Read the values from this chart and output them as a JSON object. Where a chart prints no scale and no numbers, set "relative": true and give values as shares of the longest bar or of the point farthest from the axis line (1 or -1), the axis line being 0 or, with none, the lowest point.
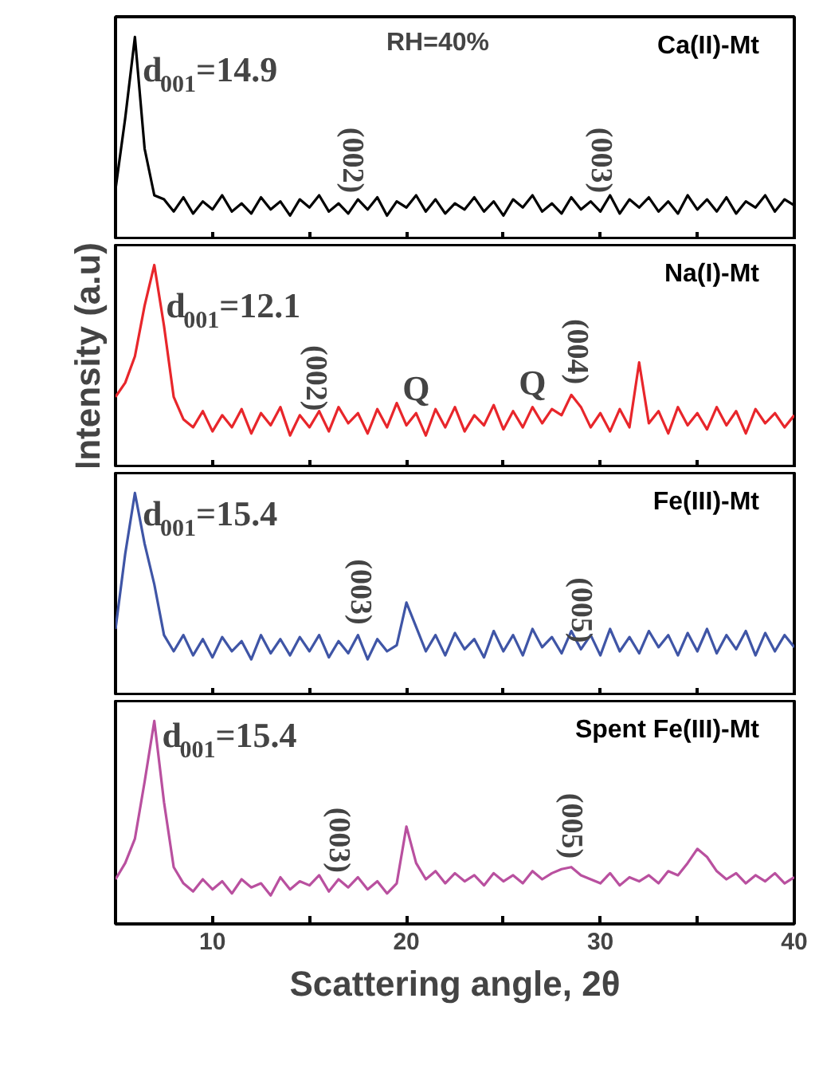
{
  "chart_data": [
    {
      "type": "line",
      "relative": true,
      "xlim": [
        5,
        40
      ],
      "xticks": [
        10,
        {
          "value": 15,
          "label": null
        },
        20,
        {
          "value": 25,
          "label": null
        },
        30,
        {
          "value": 35,
          "label": null
        },
        40
      ],
      "tick_labels": false,
      "x": [
        5,
        5.5,
        6,
        6.5,
        7,
        7.5,
        8,
        8.5,
        9,
        9.5,
        10,
        10.5,
        11,
        11.5,
        12,
        12.5,
        13,
        13.5,
        14,
        14.5,
        15,
        15.5,
        16,
        16.5,
        17,
        17.5,
        18,
        18.5,
        19,
        19.5,
        20,
        20.5,
        21,
        21.5,
        22,
        22.5,
        23,
        23.5,
        24,
        24.5,
        25,
        25.5,
        26,
        26.5,
        27,
        27.5,
        28,
        28.5,
        29,
        29.5,
        30,
        30.5,
        31,
        31.5,
        32,
        32.5,
        33,
        33.5,
        34,
        34.5,
        35,
        35.5,
        36,
        36.5,
        37,
        37.5,
        38,
        38.5,
        39,
        39.5,
        40
      ],
      "series": [
        {
          "name": "Ca(II)-Mt",
          "color": "#000000",
          "values": [
            0.25,
            0.6,
            1.0,
            0.45,
            0.22,
            0.2,
            0.14,
            0.21,
            0.13,
            0.19,
            0.15,
            0.22,
            0.14,
            0.18,
            0.13,
            0.21,
            0.15,
            0.19,
            0.12,
            0.2,
            0.16,
            0.22,
            0.14,
            0.18,
            0.13,
            0.2,
            0.15,
            0.21,
            0.12,
            0.19,
            0.16,
            0.22,
            0.14,
            0.2,
            0.13,
            0.18,
            0.15,
            0.21,
            0.14,
            0.19,
            0.12,
            0.2,
            0.16,
            0.22,
            0.14,
            0.18,
            0.13,
            0.21,
            0.15,
            0.19,
            0.14,
            0.22,
            0.13,
            0.2,
            0.16,
            0.21,
            0.14,
            0.19,
            0.13,
            0.22,
            0.15,
            0.2,
            0.14,
            0.21,
            0.13,
            0.19,
            0.16,
            0.22,
            0.14,
            0.2,
            0.17
          ]
        }
      ],
      "annotations": [
        {
          "text": "d$_{001}$=14.9",
          "x": 6.4,
          "y": 0.84
        },
        "RH=40%",
        {
          "text": "(002)",
          "x": 17.2,
          "y": 0.2
        },
        {
          "text": "(003)",
          "x": 30,
          "y": 0.2
        }
      ]
    },
    {
      "type": "line",
      "relative": true,
      "xlim": [
        5,
        40
      ],
      "xticks": [
        10,
        {
          "value": 15,
          "label": null
        },
        20,
        {
          "value": 25,
          "label": null
        },
        30,
        {
          "value": 35,
          "label": null
        },
        40
      ],
      "tick_labels": false,
      "ylabel": "Intensity (a.u)",
      "x": [
        5,
        5.5,
        6,
        6.5,
        7,
        7.5,
        8,
        8.5,
        9,
        9.5,
        10,
        10.5,
        11,
        11.5,
        12,
        12.5,
        13,
        13.5,
        14,
        14.5,
        15,
        15.5,
        16,
        16.5,
        17,
        17.5,
        18,
        18.5,
        19,
        19.5,
        20,
        20.5,
        21,
        21.5,
        22,
        22.5,
        23,
        23.5,
        24,
        24.5,
        25,
        25.5,
        26,
        26.5,
        27,
        27.5,
        28,
        28.5,
        29,
        29.5,
        30,
        30.5,
        31,
        31.5,
        32,
        32.5,
        33,
        33.5,
        34,
        34.5,
        35,
        35.5,
        36,
        36.5,
        37,
        37.5,
        38,
        38.5,
        39,
        39.5,
        40
      ],
      "series": [
        {
          "name": "Na(I)-Mt",
          "color": "#e8262b",
          "values": [
            0.35,
            0.42,
            0.55,
            0.8,
            1.0,
            0.7,
            0.35,
            0.24,
            0.2,
            0.28,
            0.18,
            0.26,
            0.2,
            0.29,
            0.17,
            0.27,
            0.21,
            0.3,
            0.16,
            0.26,
            0.2,
            0.28,
            0.18,
            0.3,
            0.22,
            0.27,
            0.17,
            0.29,
            0.2,
            0.32,
            0.21,
            0.27,
            0.16,
            0.29,
            0.2,
            0.3,
            0.18,
            0.26,
            0.21,
            0.31,
            0.19,
            0.28,
            0.2,
            0.3,
            0.22,
            0.29,
            0.26,
            0.36,
            0.3,
            0.2,
            0.27,
            0.18,
            0.29,
            0.2,
            0.52,
            0.22,
            0.28,
            0.17,
            0.3,
            0.21,
            0.27,
            0.19,
            0.3,
            0.21,
            0.28,
            0.17,
            0.29,
            0.22,
            0.27,
            0.2,
            0.26
          ]
        }
      ],
      "annotations": [
        {
          "text": "d$_{001}$=12.1",
          "x": 7.6,
          "y": 0.8
        },
        {
          "text": "(002)",
          "x": 15.3,
          "y": 0.25
        },
        {
          "text": "Q",
          "x": 20.5,
          "y": 0.27
        },
        {
          "text": "Q",
          "x": 26.5,
          "y": 0.3
        },
        {
          "text": "(004)",
          "x": 28.8,
          "y": 0.38
        }
      ]
    },
    {
      "type": "line",
      "relative": true,
      "xlim": [
        5,
        40
      ],
      "xticks": [
        10,
        {
          "value": 15,
          "label": null
        },
        20,
        {
          "value": 25,
          "label": null
        },
        30,
        {
          "value": 35,
          "label": null
        },
        40
      ],
      "tick_labels": false,
      "x": [
        5,
        5.5,
        6,
        6.5,
        7,
        7.5,
        8,
        8.5,
        9,
        9.5,
        10,
        10.5,
        11,
        11.5,
        12,
        12.5,
        13,
        13.5,
        14,
        14.5,
        15,
        15.5,
        16,
        16.5,
        17,
        17.5,
        18,
        18.5,
        19,
        19.5,
        20,
        20.5,
        21,
        21.5,
        22,
        22.5,
        23,
        23.5,
        24,
        24.5,
        25,
        25.5,
        26,
        26.5,
        27,
        27.5,
        28,
        28.5,
        29,
        29.5,
        30,
        30.5,
        31,
        31.5,
        32,
        32.5,
        33,
        33.5,
        34,
        34.5,
        35,
        35.5,
        36,
        36.5,
        37,
        37.5,
        38,
        38.5,
        39,
        39.5,
        40
      ],
      "series": [
        {
          "name": "Fe(III)-Mt",
          "color": "#3f55a6",
          "values": [
            0.33,
            0.7,
            1.0,
            0.75,
            0.55,
            0.3,
            0.22,
            0.3,
            0.2,
            0.28,
            0.19,
            0.29,
            0.22,
            0.27,
            0.18,
            0.3,
            0.21,
            0.28,
            0.2,
            0.29,
            0.22,
            0.3,
            0.19,
            0.27,
            0.21,
            0.3,
            0.18,
            0.28,
            0.22,
            0.25,
            0.46,
            0.34,
            0.22,
            0.3,
            0.2,
            0.31,
            0.23,
            0.28,
            0.19,
            0.32,
            0.22,
            0.3,
            0.2,
            0.33,
            0.24,
            0.29,
            0.21,
            0.32,
            0.23,
            0.3,
            0.2,
            0.33,
            0.22,
            0.29,
            0.21,
            0.32,
            0.24,
            0.3,
            0.2,
            0.31,
            0.22,
            0.33,
            0.21,
            0.3,
            0.23,
            0.32,
            0.2,
            0.31,
            0.22,
            0.3,
            0.24
          ]
        }
      ],
      "annotations": [
        {
          "text": "d$_{001}$=15.4",
          "x": 6.4,
          "y": 0.9
        },
        {
          "text": "(003)",
          "x": 17.6,
          "y": 0.32
        },
        {
          "text": "(005)",
          "x": 29,
          "y": 0.23
        }
      ]
    },
    {
      "type": "line",
      "relative": true,
      "xlim": [
        5,
        40
      ],
      "xticks": [
        10,
        {
          "value": 15,
          "label": null
        },
        20,
        {
          "value": 25,
          "label": null
        },
        30,
        {
          "value": 35,
          "label": null
        },
        40
      ],
      "tick_labels": "x",
      "xlabel": "Scattering angle, 2θ",
      "x": [
        5,
        5.5,
        6,
        6.5,
        7,
        7.5,
        8,
        8.5,
        9,
        9.5,
        10,
        10.5,
        11,
        11.5,
        12,
        12.5,
        13,
        13.5,
        14,
        14.5,
        15,
        15.5,
        16,
        16.5,
        17,
        17.5,
        18,
        18.5,
        19,
        19.5,
        20,
        20.5,
        21,
        21.5,
        22,
        22.5,
        23,
        23.5,
        24,
        24.5,
        25,
        25.5,
        26,
        26.5,
        27,
        27.5,
        28,
        28.5,
        29,
        29.5,
        30,
        30.5,
        31,
        31.5,
        32,
        32.5,
        33,
        33.5,
        34,
        34.5,
        35,
        35.5,
        36,
        36.5,
        37,
        37.5,
        38,
        38.5,
        39,
        39.5,
        40
      ],
      "series": [
        {
          "name": "Spent Fe(III)-Mt",
          "color": "#b9509f",
          "values": [
            0.22,
            0.3,
            0.42,
            0.7,
            1.0,
            0.6,
            0.28,
            0.2,
            0.16,
            0.22,
            0.17,
            0.21,
            0.15,
            0.22,
            0.18,
            0.2,
            0.14,
            0.23,
            0.17,
            0.21,
            0.19,
            0.24,
            0.16,
            0.22,
            0.18,
            0.23,
            0.17,
            0.21,
            0.15,
            0.2,
            0.48,
            0.3,
            0.22,
            0.26,
            0.2,
            0.25,
            0.21,
            0.24,
            0.19,
            0.25,
            0.21,
            0.24,
            0.2,
            0.26,
            0.22,
            0.25,
            0.27,
            0.28,
            0.24,
            0.22,
            0.2,
            0.25,
            0.19,
            0.23,
            0.21,
            0.24,
            0.2,
            0.26,
            0.24,
            0.3,
            0.37,
            0.33,
            0.26,
            0.22,
            0.25,
            0.2,
            0.24,
            0.21,
            0.25,
            0.2,
            0.23
          ]
        }
      ],
      "annotations": [
        {
          "text": "d$_{001}$=15.4",
          "x": 7.4,
          "y": 0.93
        },
        {
          "text": "(003)",
          "x": 16.5,
          "y": 0.22
        },
        {
          "text": "(005)",
          "x": 28.5,
          "y": 0.29
        }
      ]
    }
  ]
}
